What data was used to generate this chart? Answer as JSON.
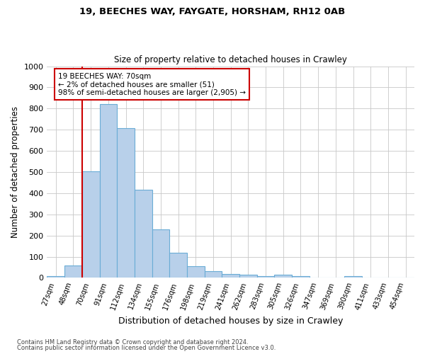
{
  "title1": "19, BEECHES WAY, FAYGATE, HORSHAM, RH12 0AB",
  "title2": "Size of property relative to detached houses in Crawley",
  "xlabel": "Distribution of detached houses by size in Crawley",
  "ylabel": "Number of detached properties",
  "categories": [
    "27sqm",
    "48sqm",
    "70sqm",
    "91sqm",
    "112sqm",
    "134sqm",
    "155sqm",
    "176sqm",
    "198sqm",
    "219sqm",
    "241sqm",
    "262sqm",
    "283sqm",
    "305sqm",
    "326sqm",
    "347sqm",
    "369sqm",
    "390sqm",
    "411sqm",
    "433sqm",
    "454sqm"
  ],
  "values": [
    8,
    57,
    505,
    820,
    708,
    418,
    230,
    118,
    55,
    33,
    17,
    14,
    8,
    14,
    9,
    0,
    0,
    8,
    0,
    0,
    0
  ],
  "bar_color": "#b8d0ea",
  "bar_edge_color": "#6aacd6",
  "vline_index": 2,
  "vline_color": "#cc0000",
  "annotation_text": "19 BEECHES WAY: 70sqm\n← 2% of detached houses are smaller (51)\n98% of semi-detached houses are larger (2,905) →",
  "annotation_box_color": "#cc0000",
  "ylim": [
    0,
    1000
  ],
  "yticks": [
    0,
    100,
    200,
    300,
    400,
    500,
    600,
    700,
    800,
    900,
    1000
  ],
  "footer1": "Contains HM Land Registry data © Crown copyright and database right 2024.",
  "footer2": "Contains public sector information licensed under the Open Government Licence v3.0.",
  "bg_color": "#ffffff",
  "grid_color": "#c8c8c8"
}
